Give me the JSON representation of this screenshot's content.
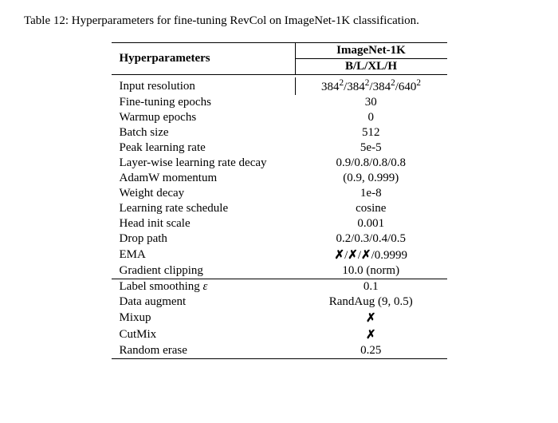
{
  "caption": "Table 12: Hyperparameters for fine-tuning RevCol on ImageNet-1K classification.",
  "header": {
    "param_label": "Hyperparameters",
    "dataset": "ImageNet-1K",
    "variants": "B/L/XL/H"
  },
  "sections": [
    {
      "rows": [
        {
          "k": "Input resolution",
          "v": "384²/384²/384²/640²",
          "sq": true
        },
        {
          "k": "Fine-tuning epochs",
          "v": "30"
        },
        {
          "k": "Warmup epochs",
          "v": "0"
        },
        {
          "k": "Batch size",
          "v": "512"
        },
        {
          "k": "Peak learning rate",
          "v": "5e-5"
        },
        {
          "k": "Layer-wise learning rate decay",
          "v": "0.9/0.8/0.8/0.8"
        },
        {
          "k": "AdamW momentum",
          "v": "(0.9, 0.999)"
        },
        {
          "k": "Weight decay",
          "v": "1e-8"
        },
        {
          "k": "Learning rate schedule",
          "v": "cosine"
        },
        {
          "k": "Head init scale",
          "v": "0.001"
        },
        {
          "k": "Drop path",
          "v": "0.2/0.3/0.4/0.5"
        },
        {
          "k": "EMA",
          "v": "✗/✗/✗/0.9999",
          "xmarks": true
        },
        {
          "k": "Gradient clipping",
          "v": "10.0 (norm)"
        }
      ]
    },
    {
      "rows": [
        {
          "k": "Label smoothing ε",
          "v": "0.1",
          "eps": true
        },
        {
          "k": "Data augment",
          "v": "RandAug (9, 0.5)"
        },
        {
          "k": "Mixup",
          "v": "✗",
          "xmarks": true
        },
        {
          "k": "CutMix",
          "v": "✗",
          "xmarks": true
        },
        {
          "k": "Random erase",
          "v": "0.25"
        }
      ]
    }
  ]
}
